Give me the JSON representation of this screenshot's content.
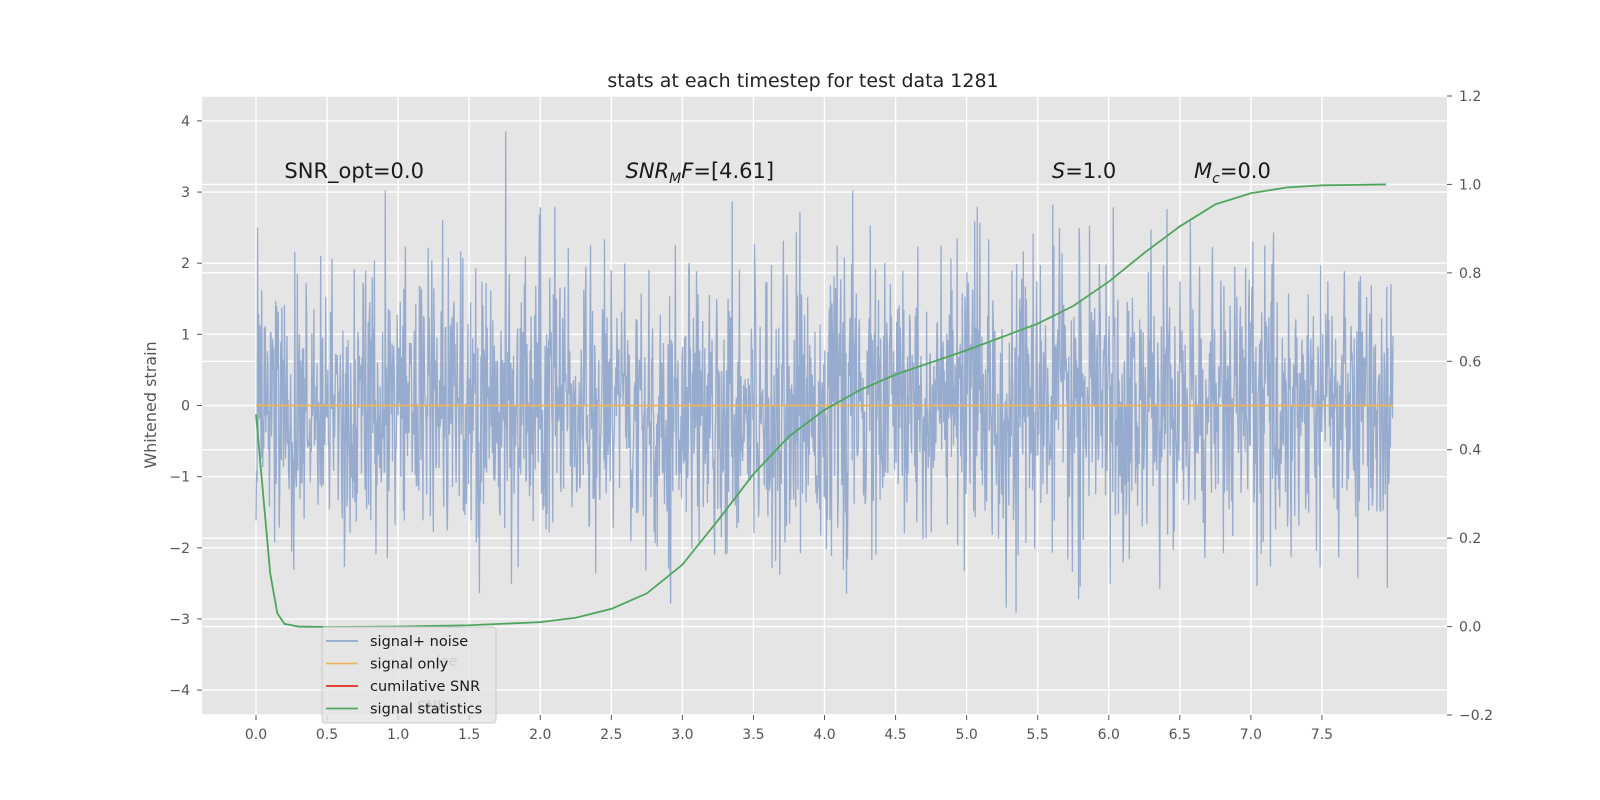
{
  "chart_data": {
    "type": "line",
    "title": "stats at each timestep for test data 1281",
    "ylabel": "Whitened strain",
    "ylabel_right": "",
    "xlim": [
      -0.38,
      8.38
    ],
    "ylim": [
      -4.35,
      4.35
    ],
    "ylim_right": [
      -0.2,
      1.2
    ],
    "x_ticks": [
      0.0,
      0.5,
      1.0,
      1.5,
      2.0,
      2.5,
      3.0,
      3.5,
      4.0,
      4.5,
      5.0,
      5.5,
      6.0,
      6.5,
      7.0,
      7.5
    ],
    "x_tick_labels": [
      "0.0",
      "0.5",
      "1.0",
      "1.5",
      "2.0",
      "2.5",
      "3.0",
      "3.5",
      "4.0",
      "4.5",
      "5.0",
      "5.5",
      "6.0",
      "6.5",
      "7.0",
      "7.5"
    ],
    "y_ticks": [
      -4,
      -3,
      -2,
      -1,
      0,
      1,
      2,
      3,
      4
    ],
    "y_tick_labels": [
      "−4",
      "−3",
      "−2",
      "−1",
      "0",
      "1",
      "2",
      "3",
      "4"
    ],
    "y_right_ticks": [
      -0.2,
      0.0,
      0.2,
      0.4,
      0.6,
      0.8,
      1.0,
      1.2
    ],
    "y_right_tick_labels": [
      "−0.2",
      "0.0",
      "0.2",
      "0.4",
      "0.6",
      "0.8",
      "1.0",
      "1.2"
    ],
    "grid": true,
    "legend_position": "lower-left",
    "series": [
      {
        "name": "signal+ noise",
        "color": "#92a8cc",
        "axis": "left",
        "kind": "noise",
        "x_range": [
          0.0,
          8.0
        ],
        "sigma": 1.0
      },
      {
        "name": "signal only",
        "color": "#ecb45b",
        "axis": "left",
        "x": [
          0.0,
          8.0
        ],
        "y": [
          0.0,
          0.0
        ]
      },
      {
        "name": "cumilative SNR",
        "color": "#e0301e",
        "axis": "left",
        "x": [],
        "y": []
      },
      {
        "name": "signal statistics",
        "color": "#4ea65c",
        "axis": "right",
        "x": [
          0.0,
          0.05,
          0.1,
          0.15,
          0.2,
          0.3,
          0.5,
          1.0,
          1.5,
          2.0,
          2.25,
          2.5,
          2.75,
          3.0,
          3.25,
          3.5,
          3.75,
          4.0,
          4.25,
          4.5,
          5.0,
          5.5,
          5.75,
          6.0,
          6.25,
          6.5,
          6.75,
          7.0,
          7.25,
          7.5,
          7.75,
          7.95
        ],
        "y": [
          0.48,
          0.3,
          0.12,
          0.03,
          0.006,
          0.0,
          -0.001,
          0.0,
          0.003,
          0.01,
          0.02,
          0.04,
          0.075,
          0.14,
          0.24,
          0.345,
          0.43,
          0.49,
          0.535,
          0.57,
          0.625,
          0.685,
          0.725,
          0.78,
          0.845,
          0.905,
          0.955,
          0.98,
          0.993,
          0.998,
          0.999,
          1.0
        ]
      }
    ],
    "annotations": [
      {
        "text": "SNR_opt=0.0",
        "x": 0.2,
        "y": 3.2,
        "style": "normal"
      },
      {
        "text": "SNR",
        "sub": "M",
        "tail": "F=[4.61]",
        "x": 2.6,
        "y": 3.2,
        "style": "italic"
      },
      {
        "text": "S",
        "tail": "=1.0",
        "x": 5.6,
        "y": 3.2,
        "style": "italic"
      },
      {
        "text": "M",
        "sub": "c",
        "tail": "=0.0",
        "x": 6.6,
        "y": 3.2,
        "style": "italic"
      }
    ],
    "legend_entries": [
      "signal+ noise",
      "signal only",
      "cumilative SNR",
      "signal statistics"
    ]
  },
  "legend": {
    "ghost_1": "ise",
    "ghost_2": "SNR"
  }
}
